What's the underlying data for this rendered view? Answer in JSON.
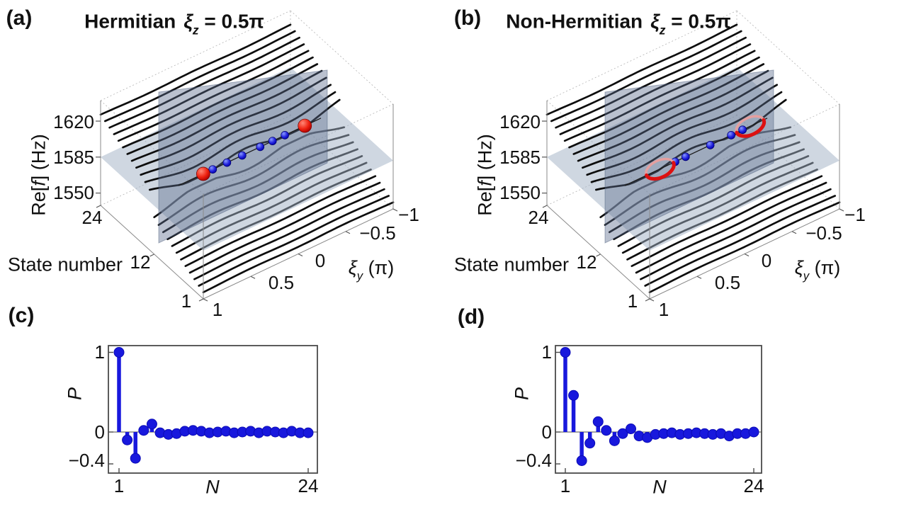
{
  "colors": {
    "blue": "#1818dd",
    "red": "#dd1111",
    "curve": "#0d0d0d",
    "plane_h": "#9fb0c4",
    "plane_v": "#5a6b8c",
    "frame": "#4a4a4a"
  },
  "panel_a": {
    "letter": "(a)",
    "title": {
      "word": "Hermitian",
      "sym": "ξ",
      "sub": "z",
      "eq": " = 0.5π"
    },
    "z_axis": {
      "pre": "Re[",
      "f": "f",
      "post": "] (Hz)",
      "ticks": [
        "1620",
        "1585",
        "1550"
      ]
    },
    "state_axis": {
      "label": "State number",
      "ticks": [
        "24",
        "12",
        "1"
      ]
    },
    "xi_axis": {
      "sym": "ξ",
      "sub": "y",
      "unit": " (π)",
      "ticks": [
        "1",
        "0.5",
        "0",
        "−0.5",
        "−1"
      ]
    }
  },
  "panel_b": {
    "letter": "(b)",
    "title": {
      "word": "Non-Hermitian",
      "sym": "ξ",
      "sub": "z",
      "eq": " = 0.5π"
    },
    "z_axis": {
      "pre": "Re[",
      "f": "f",
      "post": "] (Hz)",
      "ticks": [
        "1620",
        "1585",
        "1550"
      ]
    },
    "state_axis": {
      "label": "State number",
      "ticks": [
        "24",
        "12",
        "1"
      ]
    },
    "xi_axis": {
      "sym": "ξ",
      "sub": "y",
      "unit": " (π)",
      "ticks": [
        "1",
        "0.5",
        "0",
        "−0.5",
        "−1"
      ]
    }
  },
  "panel_c": {
    "letter": "(c)",
    "xlabel": "N",
    "ylabel": "P",
    "y_ticks": [
      "1",
      "0",
      "−0.4"
    ],
    "x_ticks": [
      "1",
      "24"
    ]
  },
  "panel_d": {
    "letter": "(d)",
    "xlabel": "N",
    "ylabel": "P",
    "y_ticks": [
      "1",
      "0",
      "−0.4"
    ],
    "x_ticks": [
      "1",
      "24"
    ]
  },
  "chart_data": [
    {
      "type": "line",
      "subtype": "3d-spectrum",
      "panel": "a",
      "title": "Hermitian ξ_z = 0.5π",
      "zlabel": "Re[f] (Hz)",
      "z_ticks": [
        1550,
        1585,
        1620
      ],
      "z_range": [
        1538,
        1640
      ],
      "state_label": "State number",
      "state_ticks": [
        1,
        12,
        24
      ],
      "state_range": [
        1,
        24
      ],
      "xlabel": "ξ_y (π)",
      "x_ticks": [
        1,
        0.5,
        0,
        -0.5,
        -1
      ],
      "x_range": [
        1,
        -1
      ],
      "lower_band": {
        "states_from": 1,
        "states_to": 12,
        "f_start": 1544,
        "f_step": 2.4
      },
      "upper_band": {
        "states_from": 13,
        "states_to": 24,
        "f_start": 1600.4,
        "f_step": 2.4
      },
      "gap_center_f": 1585,
      "horizontal_plane_f": 1585,
      "vertical_plane_state": 12.5,
      "edge_state": {
        "state": 12.5,
        "f": 1585,
        "blue_dots_xi": [
          0.36,
          0.21,
          0.05,
          -0.14,
          -0.27,
          -0.4
        ],
        "red_spheres_xi": [
          0.46,
          -0.61
        ]
      }
    },
    {
      "type": "line",
      "subtype": "3d-spectrum",
      "panel": "b",
      "title": "Non-Hermitian ξ_z = 0.5π",
      "zlabel": "Re[f] (Hz)",
      "z_ticks": [
        1550,
        1585,
        1620
      ],
      "z_range": [
        1538,
        1640
      ],
      "state_label": "State number",
      "state_ticks": [
        1,
        12,
        24
      ],
      "state_range": [
        1,
        24
      ],
      "xlabel": "ξ_y (π)",
      "x_ticks": [
        1,
        0.5,
        0,
        -0.5,
        -1
      ],
      "x_range": [
        1,
        -1
      ],
      "lower_band": {
        "states_from": 1,
        "states_to": 12,
        "f_start": 1544,
        "f_step": 2.4
      },
      "upper_band": {
        "states_from": 13,
        "states_to": 24,
        "f_start": 1600.4,
        "f_step": 2.4
      },
      "gap_center_f": 1585,
      "horizontal_plane_f": 1585,
      "vertical_plane_state": 12.5,
      "edge_state": {
        "state": 12.5,
        "f": 1585,
        "blue_dots_xi": [
          0.19,
          0.08,
          -0.18,
          -0.4,
          -0.52
        ],
        "red_rings_xi": [
          0.35,
          -0.6
        ]
      }
    },
    {
      "type": "stem",
      "panel": "c",
      "xlabel": "N",
      "ylabel": "P",
      "x_ticks": [
        1,
        24
      ],
      "y_ticks": [
        1,
        0,
        -0.4
      ],
      "xlim": [
        0.2,
        25
      ],
      "ylim": [
        -0.52,
        1.08
      ],
      "n": [
        1,
        2,
        3,
        4,
        5,
        6,
        7,
        8,
        9,
        10,
        11,
        12,
        13,
        14,
        15,
        16,
        17,
        18,
        19,
        20,
        21,
        22,
        23,
        24
      ],
      "p": [
        1.0,
        -0.1,
        -0.33,
        0.02,
        0.1,
        -0.01,
        -0.03,
        -0.02,
        0.01,
        0.02,
        0.01,
        -0.01,
        0.0,
        0.01,
        -0.01,
        0.0,
        0.01,
        -0.01,
        0.01,
        0.0,
        -0.01,
        0.01,
        -0.01,
        -0.01
      ]
    },
    {
      "type": "stem",
      "panel": "d",
      "xlabel": "N",
      "ylabel": "P",
      "x_ticks": [
        1,
        24
      ],
      "y_ticks": [
        1,
        0,
        -0.4
      ],
      "xlim": [
        0.2,
        25
      ],
      "ylim": [
        -0.52,
        1.08
      ],
      "n": [
        1,
        2,
        3,
        4,
        5,
        6,
        7,
        8,
        9,
        10,
        11,
        12,
        13,
        14,
        15,
        16,
        17,
        18,
        19,
        20,
        21,
        22,
        23,
        24
      ],
      "p": [
        1.0,
        0.46,
        -0.36,
        -0.14,
        0.13,
        0.02,
        -0.11,
        -0.02,
        0.04,
        -0.05,
        -0.07,
        -0.03,
        -0.02,
        -0.01,
        -0.03,
        -0.02,
        -0.01,
        -0.02,
        -0.03,
        -0.02,
        -0.05,
        -0.02,
        -0.02,
        0.0
      ]
    }
  ]
}
